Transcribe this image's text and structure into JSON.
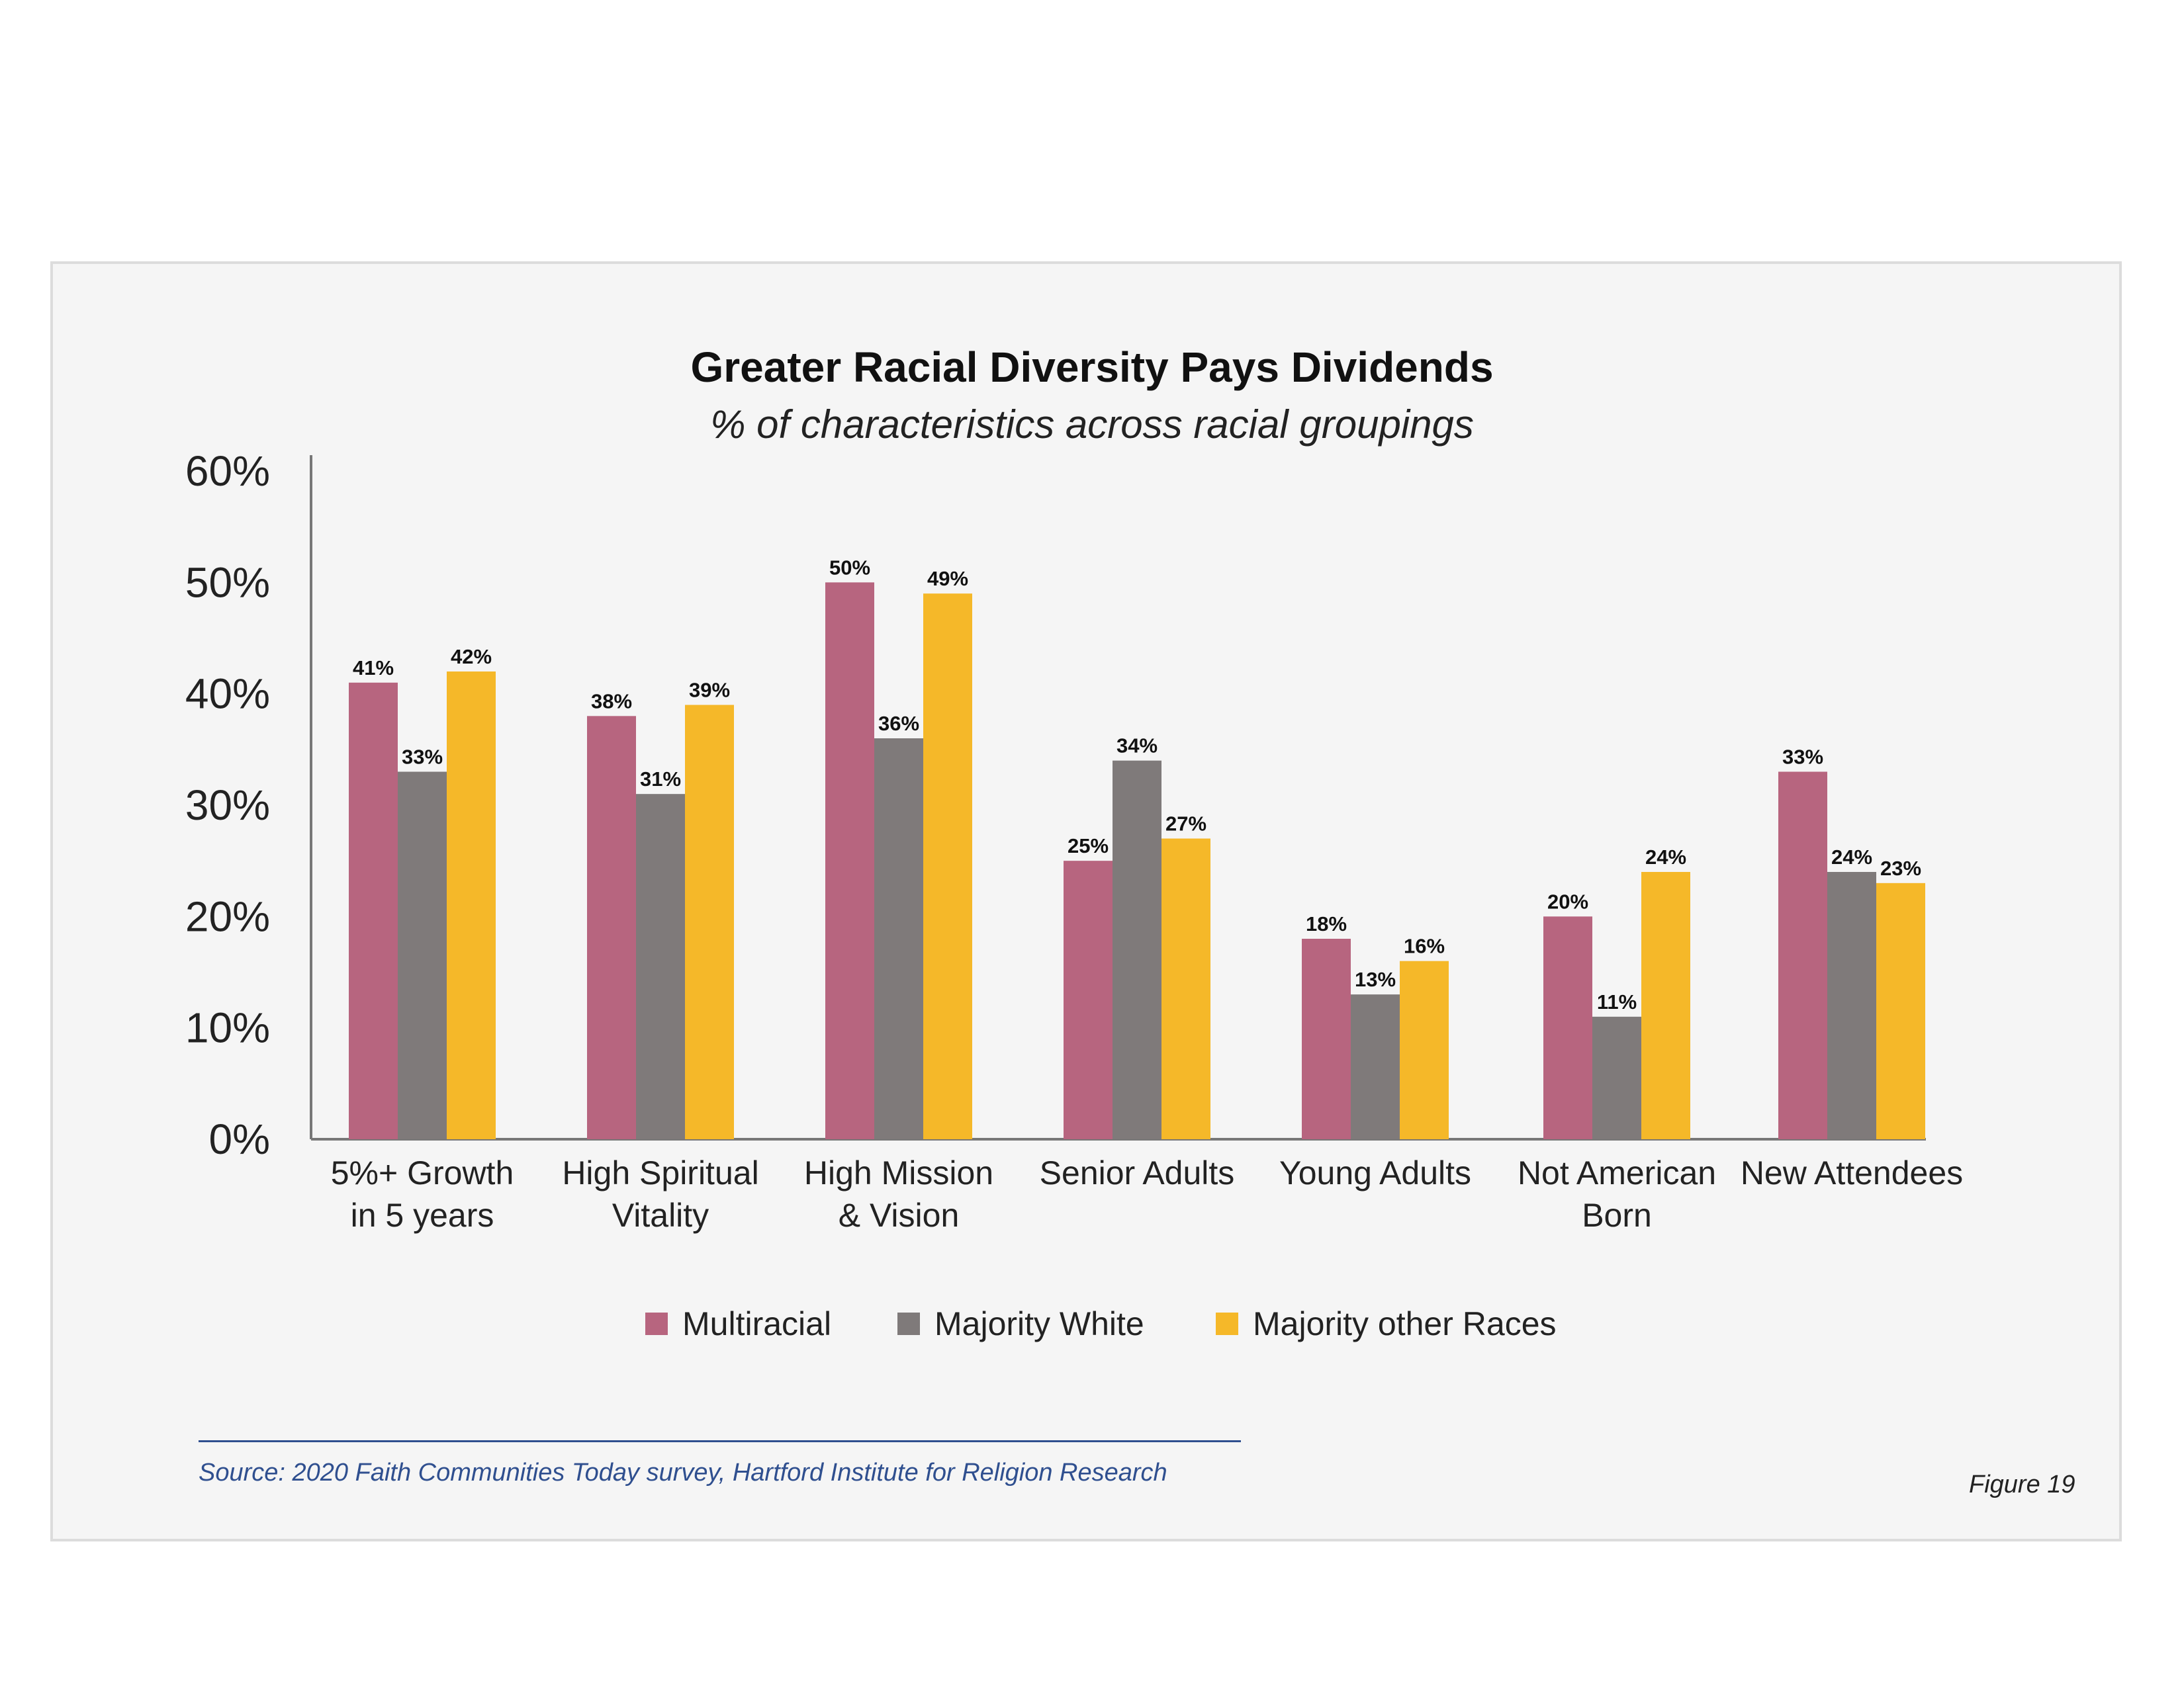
{
  "chart_data": {
    "type": "bar",
    "title": "Greater Racial Diversity Pays Dividends",
    "subtitle": "% of characteristics across racial groupings",
    "categories": [
      [
        "5%+ Growth",
        "in 5 years"
      ],
      [
        "High Spiritual",
        "Vitality"
      ],
      [
        "High Mission",
        "& Vision"
      ],
      [
        "Senior Adults"
      ],
      [
        "Young Adults"
      ],
      [
        "Not American",
        "Born"
      ],
      [
        "New Attendees"
      ]
    ],
    "series": [
      {
        "name": "Multiracial",
        "color": "#b7657f",
        "values": [
          41,
          38,
          50,
          25,
          18,
          20,
          33
        ],
        "labels": [
          "41%",
          "38%",
          "50%",
          "25%",
          "18%",
          "20%",
          "33%"
        ]
      },
      {
        "name": "Majority White",
        "color": "#7f7a7a",
        "values": [
          33,
          31,
          36,
          34,
          13,
          11,
          24
        ],
        "labels": [
          "33%",
          "31%",
          "36%",
          "34%",
          "13%",
          "11%",
          "24%"
        ]
      },
      {
        "name": "Majority other Races",
        "color": "#f5b829",
        "values": [
          42,
          39,
          49,
          27,
          16,
          24,
          23
        ],
        "labels": [
          "42%",
          "39%",
          "49%",
          "27%",
          "16%",
          "24%",
          "23%"
        ]
      }
    ],
    "yticks": [
      "0%",
      "10%",
      "20%",
      "30%",
      "40%",
      "50%",
      "60%"
    ],
    "ylim": [
      0,
      60
    ],
    "grid": false,
    "legend": "bottom-center"
  },
  "footer": {
    "source": "Source: 2020 Faith Communities Today survey, Hartford Institute for Religion Research",
    "figure": "Figure 19"
  }
}
